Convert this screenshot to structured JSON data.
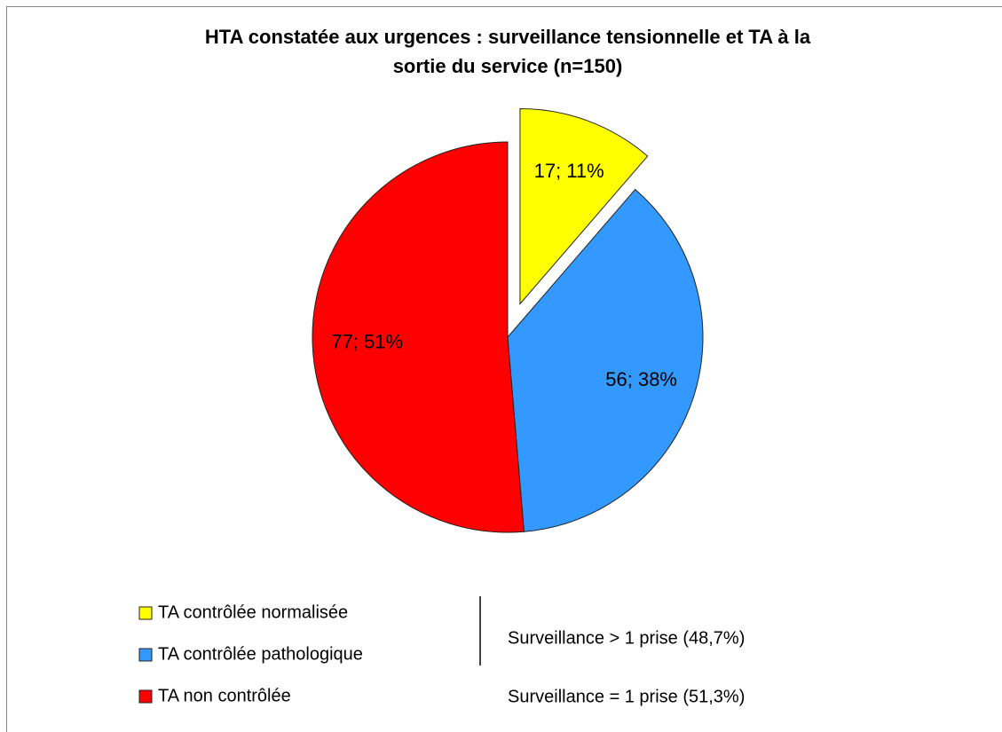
{
  "chart_data": {
    "type": "pie",
    "title": [
      "HTA constatée aux urgences : surveillance tensionnelle et TA à la",
      "sortie du service (n=150)"
    ],
    "categories": [
      "TA contrôlée normalisée",
      "TA contrôlée pathologique",
      "TA non contrôlée"
    ],
    "values": [
      17,
      56,
      77
    ],
    "value_labels": [
      "17; 11%",
      "56; 38%",
      "77; 51%"
    ],
    "colors": [
      "#ffff00",
      "#3399ff",
      "#ff0000"
    ],
    "exploded": [
      true,
      false,
      false
    ],
    "annotations": [
      "Surveillance > 1 prise (48,7%)",
      "Surveillance = 1 prise (51,3%)"
    ]
  }
}
